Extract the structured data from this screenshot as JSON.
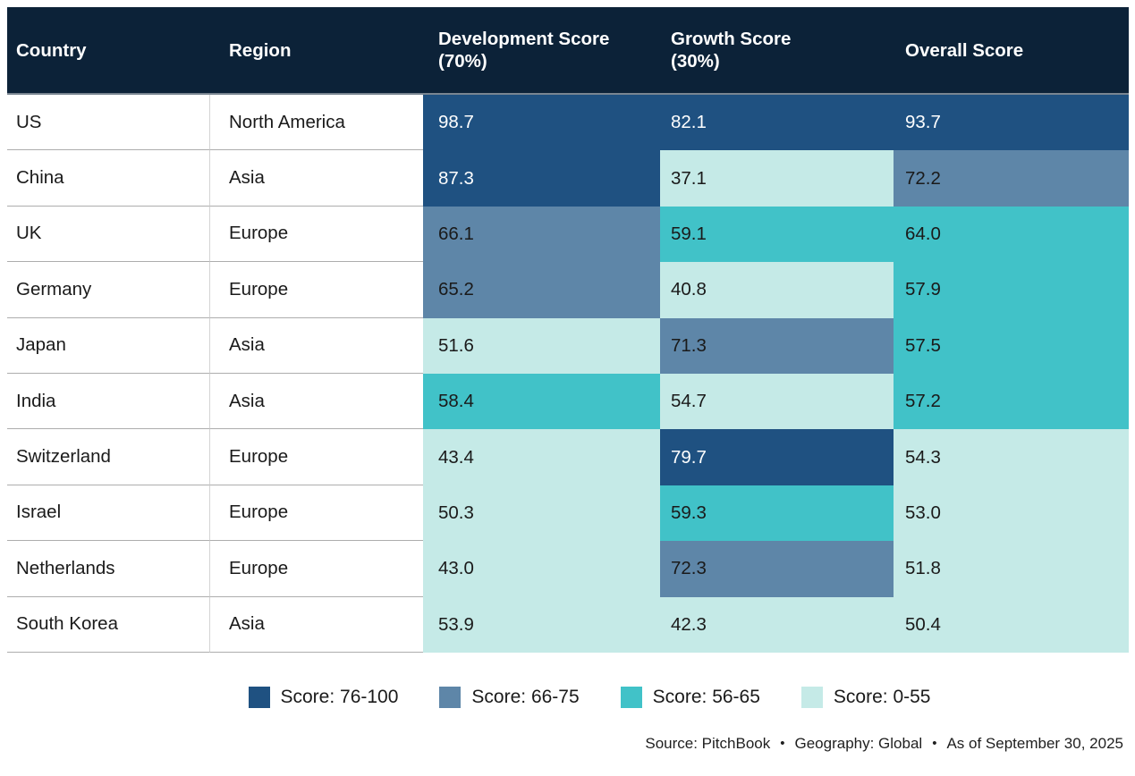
{
  "palette": {
    "header_bg": "#0c2238",
    "score_76_100": "#1f5181",
    "score_66_75": "#5e86a8",
    "score_56_65": "#41c2c8",
    "score_0_55": "#c5eae7"
  },
  "header": {
    "columns": [
      {
        "line1": "Country"
      },
      {
        "line1": "Region"
      },
      {
        "line1": "Development Score",
        "line2": "(70%)"
      },
      {
        "line1": "Growth Score",
        "line2": "(30%)"
      },
      {
        "line1": "Overall Score"
      }
    ]
  },
  "rows": [
    {
      "country": "US",
      "region": "North America",
      "dev": "98.7",
      "dev_level": "l1",
      "growth": "82.1",
      "growth_level": "l1",
      "overall": "93.7",
      "overall_level": "l1"
    },
    {
      "country": "China",
      "region": "Asia",
      "dev": "87.3",
      "dev_level": "l1",
      "growth": "37.1",
      "growth_level": "l4",
      "overall": "72.2",
      "overall_level": "l2"
    },
    {
      "country": "UK",
      "region": "Europe",
      "dev": "66.1",
      "dev_level": "l2",
      "growth": "59.1",
      "growth_level": "l3",
      "overall": "64.0",
      "overall_level": "l3"
    },
    {
      "country": "Germany",
      "region": "Europe",
      "dev": "65.2",
      "dev_level": "l2",
      "growth": "40.8",
      "growth_level": "l4",
      "overall": "57.9",
      "overall_level": "l3"
    },
    {
      "country": "Japan",
      "region": "Asia",
      "dev": "51.6",
      "dev_level": "l4",
      "growth": "71.3",
      "growth_level": "l2",
      "overall": "57.5",
      "overall_level": "l3"
    },
    {
      "country": "India",
      "region": "Asia",
      "dev": "58.4",
      "dev_level": "l3",
      "growth": "54.7",
      "growth_level": "l4",
      "overall": "57.2",
      "overall_level": "l3"
    },
    {
      "country": "Switzerland",
      "region": "Europe",
      "dev": "43.4",
      "dev_level": "l4",
      "growth": "79.7",
      "growth_level": "l1",
      "overall": "54.3",
      "overall_level": "l4"
    },
    {
      "country": "Israel",
      "region": "Europe",
      "dev": "50.3",
      "dev_level": "l4",
      "growth": "59.3",
      "growth_level": "l3",
      "overall": "53.0",
      "overall_level": "l4"
    },
    {
      "country": "Netherlands",
      "region": "Europe",
      "dev": "43.0",
      "dev_level": "l4",
      "growth": "72.3",
      "growth_level": "l2",
      "overall": "51.8",
      "overall_level": "l4"
    },
    {
      "country": "South Korea",
      "region": "Asia",
      "dev": "53.9",
      "dev_level": "l4",
      "growth": "42.3",
      "growth_level": "l4",
      "overall": "50.4",
      "overall_level": "l4"
    }
  ],
  "legend": {
    "items": [
      {
        "label": "Score: 76-100",
        "level": "l1"
      },
      {
        "label": "Score: 66-75",
        "level": "l2"
      },
      {
        "label": "Score: 56-65",
        "level": "l3"
      },
      {
        "label": "Score: 0-55",
        "level": "l4"
      }
    ]
  },
  "footer": {
    "source": "Source: PitchBook",
    "bullet": "•",
    "geography": "Geography: Global",
    "as_of": "As of September 30, 2025"
  },
  "chart_data": {
    "type": "heatmap",
    "title": "",
    "columns": [
      "Country",
      "Region",
      "Development Score (70%)",
      "Growth Score (30%)",
      "Overall Score"
    ],
    "rows": [
      [
        "US",
        "North America",
        98.7,
        82.1,
        93.7
      ],
      [
        "China",
        "Asia",
        87.3,
        37.1,
        72.2
      ],
      [
        "UK",
        "Europe",
        66.1,
        59.1,
        64.0
      ],
      [
        "Germany",
        "Europe",
        65.2,
        40.8,
        57.9
      ],
      [
        "Japan",
        "Asia",
        51.6,
        71.3,
        57.5
      ],
      [
        "India",
        "Asia",
        58.4,
        54.7,
        57.2
      ],
      [
        "Switzerland",
        "Europe",
        43.4,
        79.7,
        54.3
      ],
      [
        "Israel",
        "Europe",
        50.3,
        59.3,
        53.0
      ],
      [
        "Netherlands",
        "Europe",
        43.0,
        72.3,
        51.8
      ],
      [
        "South Korea",
        "Asia",
        53.9,
        42.3,
        50.4
      ]
    ],
    "color_bins": [
      {
        "range": "76-100",
        "color": "#1f5181"
      },
      {
        "range": "66-75",
        "color": "#5e86a8"
      },
      {
        "range": "56-65",
        "color": "#41c2c8"
      },
      {
        "range": "0-55",
        "color": "#c5eae7"
      }
    ],
    "legend_position": "bottom",
    "source_note": "Source: PitchBook • Geography: Global • As of September 30, 2025"
  }
}
